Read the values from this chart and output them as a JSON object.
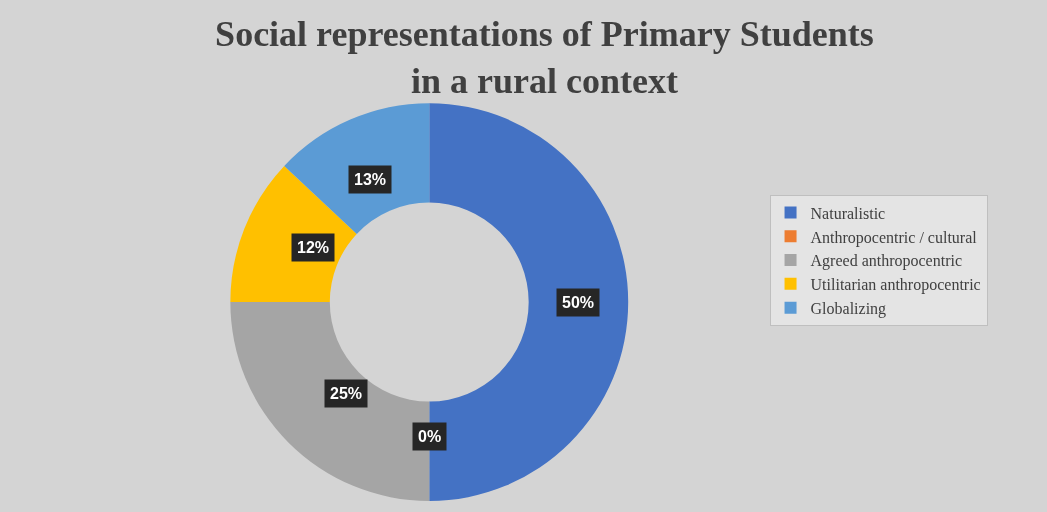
{
  "chart_data": {
    "type": "donut",
    "title": "Social representations of Primary Students\nin a rural context",
    "categories": [
      "Naturalistic",
      "Anthropocentric / cultural",
      "Agreed anthropocentric",
      "Utilitarian anthropocentric",
      "Globalizing"
    ],
    "values": [
      50,
      0,
      25,
      12,
      13
    ],
    "colors": [
      "#4472c4",
      "#ed7d31",
      "#a5a5a5",
      "#ffc000",
      "#5b9bd5"
    ],
    "value_labels": [
      "50%",
      "0%",
      "25%",
      "12%",
      "13%"
    ],
    "legend": "right"
  }
}
